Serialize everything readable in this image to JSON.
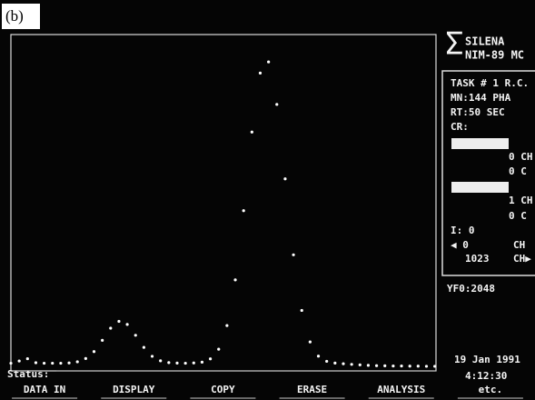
{
  "figure_label": "(b)",
  "header": {
    "brand": "SILENA",
    "model": "NIM-89 MC"
  },
  "status_panel": {
    "lines": [
      "TASK # 1 R.C.",
      "MN:144  PHA",
      "RT:50   SEC",
      "CR:"
    ],
    "region_1": [
      "0 CH",
      "0 C"
    ],
    "region_2": [
      "1 CH",
      "0 C"
    ],
    "integral": "I: 0",
    "left_marker": "◀ 0",
    "left_unit": "CH",
    "right_marker": "1023",
    "right_unit": "CH▶"
  },
  "full_scale": "YF0:2048",
  "date": "19 Jan 1991",
  "time": "4:12:30",
  "status_label": "Status:",
  "menu": [
    "DATA IN",
    "DISPLAY",
    "COPY",
    "ERASE",
    "ANALYSIS",
    "etc."
  ],
  "spectrum": {
    "type": "scatter",
    "xlim": [
      0,
      1023
    ],
    "ylim": [
      0,
      2048
    ],
    "x": [
      0,
      20,
      40,
      60,
      80,
      100,
      120,
      140,
      160,
      180,
      200,
      220,
      240,
      260,
      280,
      300,
      320,
      340,
      360,
      380,
      400,
      420,
      440,
      460,
      480,
      500,
      520,
      540,
      560,
      580,
      600,
      620,
      640,
      660,
      680,
      700,
      720,
      740,
      760,
      780,
      800,
      820,
      840,
      860,
      880,
      900,
      920,
      940,
      960,
      980,
      1000,
      1020
    ],
    "values": [
      25,
      39,
      53,
      28,
      25,
      25,
      25,
      27,
      34,
      54,
      97,
      167,
      242,
      284,
      265,
      198,
      123,
      68,
      40,
      29,
      26,
      25,
      27,
      32,
      52,
      112,
      258,
      541,
      969,
      1456,
      1821,
      1890,
      1627,
      1166,
      696,
      352,
      157,
      69,
      37,
      26,
      22,
      18,
      15,
      12,
      10,
      9,
      8,
      8,
      7,
      7,
      6,
      6
    ],
    "color": "#ffffff"
  }
}
